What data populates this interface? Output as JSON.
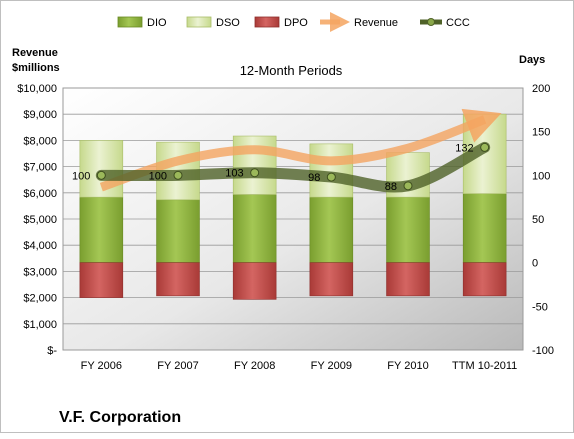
{
  "chart_data": {
    "type": "bar",
    "title": "12-Month Periods",
    "company": "V.F. Corporation",
    "left_axis_label_line1": "Revenue",
    "left_axis_label_line2": "$millions",
    "right_axis_label": "Days",
    "categories": [
      "FY 2006",
      "FY 2007",
      "FY 2008",
      "FY 2009",
      "FY 2010",
      "TTM 10-2011"
    ],
    "left_axis": {
      "range": [
        0,
        10000
      ],
      "ticks": [
        0,
        1000,
        2000,
        3000,
        4000,
        5000,
        6000,
        7000,
        8000,
        9000,
        10000
      ],
      "tick_labels": [
        "$-",
        "$1,000",
        "$2,000",
        "$3,000",
        "$4,000",
        "$5,000",
        "$6,000",
        "$7,000",
        "$8,000",
        "$9,000",
        "$10,000"
      ]
    },
    "right_axis": {
      "range": [
        -100,
        200
      ],
      "ticks": [
        -100,
        -50,
        0,
        50,
        100,
        150,
        200
      ],
      "tick_labels": [
        "-100",
        "-50",
        "0",
        "50",
        "100",
        "150",
        "200"
      ]
    },
    "series": [
      {
        "name": "DIO",
        "axis": "days",
        "color": "#8cb03c",
        "values": [
          75,
          72,
          78,
          75,
          75,
          79
        ]
      },
      {
        "name": "DSO",
        "axis": "days",
        "color": "#d7e4a8",
        "values": [
          65,
          66,
          67,
          61,
          51,
          91
        ]
      },
      {
        "name": "DPO",
        "axis": "days",
        "color": "#c0504d",
        "values": [
          -40,
          -38,
          -42,
          -38,
          -38,
          -38
        ]
      },
      {
        "name": "Revenue",
        "axis": "revenue",
        "color": "#f79646",
        "values": [
          6215,
          7219,
          7643,
          7220,
          7702,
          8800
        ]
      },
      {
        "name": "CCC",
        "axis": "days",
        "color": "#4f6228",
        "values": [
          100,
          100,
          103,
          98,
          88,
          132
        ],
        "labels": [
          "100",
          "100",
          "103",
          "98",
          "88",
          "132"
        ]
      }
    ],
    "legend_position": "top",
    "grid": true
  }
}
